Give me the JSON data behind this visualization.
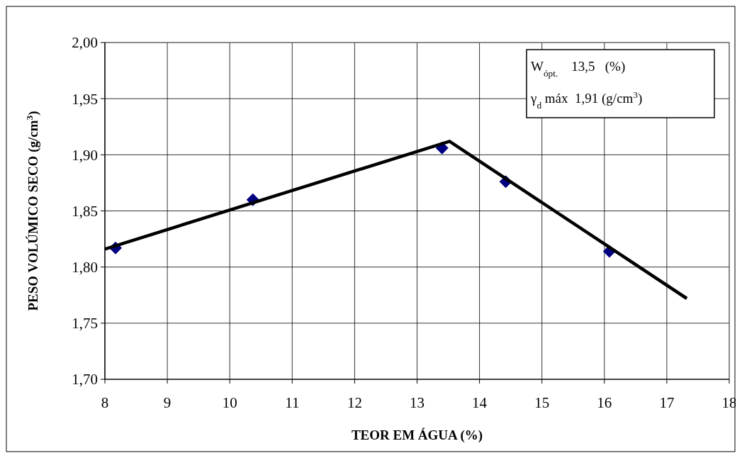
{
  "chart_data": {
    "type": "scatter",
    "xlabel": "TEOR EM ÁGUA (%)",
    "ylabel": "PESO VOLÚMICO SECO (g/cm$^{3}$)",
    "xlim": [
      8,
      18
    ],
    "xticks": [
      8,
      9,
      10,
      11,
      12,
      13,
      14,
      15,
      16,
      17,
      18
    ],
    "ylim": [
      1.7,
      2.0
    ],
    "yticks": [
      {
        "value": 1.7,
        "label": "1,70"
      },
      {
        "value": 1.75,
        "label": "1,75"
      },
      {
        "value": 1.8,
        "label": "1,80"
      },
      {
        "value": 1.85,
        "label": "1,85"
      },
      {
        "value": 1.9,
        "label": "1,90"
      },
      {
        "value": 1.95,
        "label": "1,95"
      },
      {
        "value": 2.0,
        "label": "2,00"
      }
    ],
    "grid": true,
    "series": [
      {
        "color": "#000080",
        "marker": "diamond",
        "x": [
          8.17,
          10.37,
          13.4,
          14.42,
          16.08
        ],
        "values": [
          1.817,
          1.86,
          1.906,
          1.876,
          1.814
        ]
      },
      {
        "type": "line",
        "color": "#000000",
        "marker": "none",
        "line_style": "solid",
        "x": [
          8,
          13.52,
          17.32
        ],
        "values": [
          1.816,
          1.912,
          1.772
        ]
      }
    ],
    "annotations": [
      "W$_{ópt.}$    13,5   (%)",
      "γ$_{d}$ máx  1,91 (g/cm$^{3}$)"
    ]
  }
}
